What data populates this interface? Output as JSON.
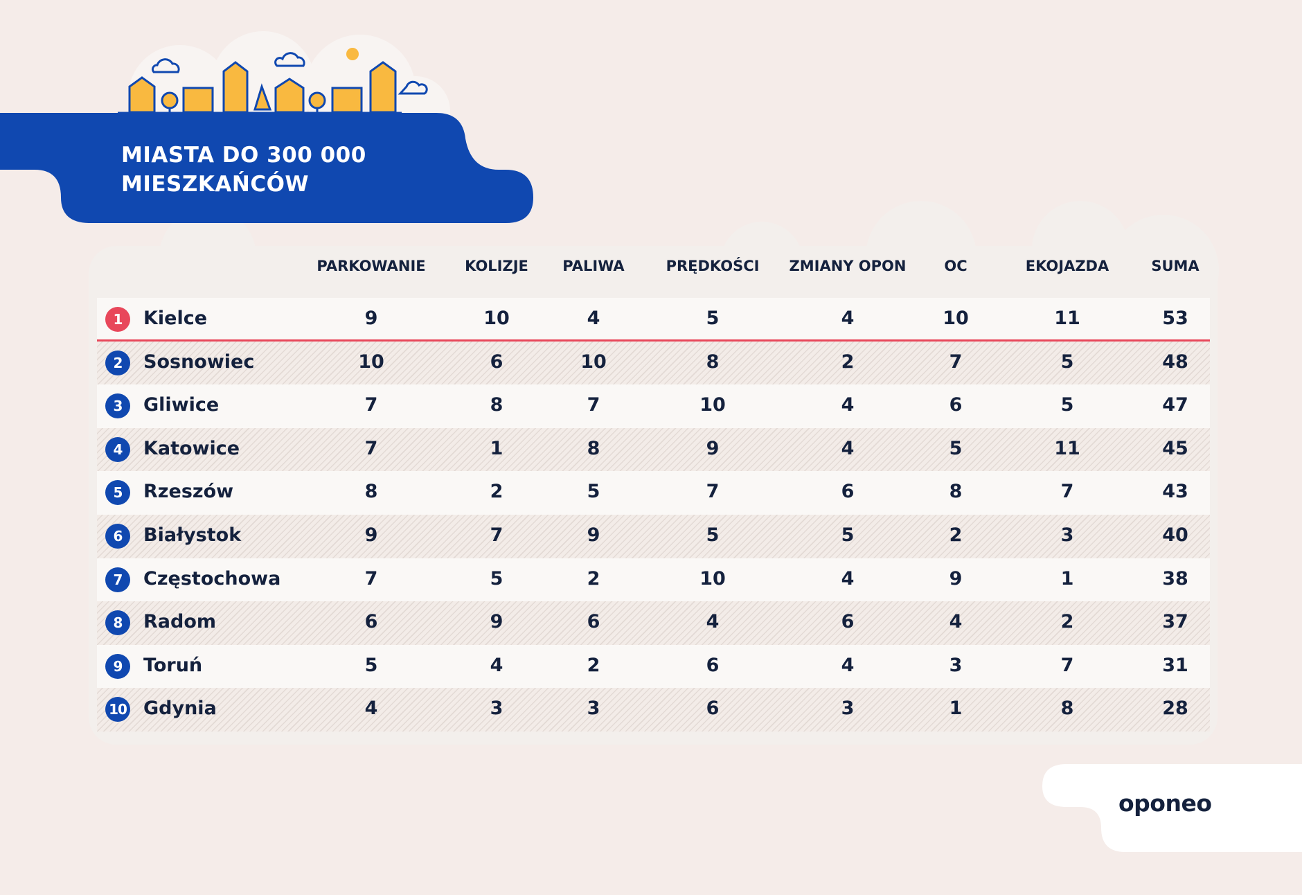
{
  "title_lines": [
    "MIASTA DO 300 000",
    "MIESZKAŃCÓW"
  ],
  "columns": [
    "PARKOWANIE",
    "KOLIZJE",
    "PALIWA",
    "PRĘDKOŚCI",
    "ZMIANY OPON",
    "OC",
    "EKOJAZDA",
    "SUMA"
  ],
  "rows": [
    {
      "rank": "1",
      "city": "Kielce",
      "values": [
        "9",
        "10",
        "4",
        "5",
        "4",
        "10",
        "11",
        "53"
      ]
    },
    {
      "rank": "2",
      "city": "Sosnowiec",
      "values": [
        "10",
        "6",
        "10",
        "8",
        "2",
        "7",
        "5",
        "48"
      ]
    },
    {
      "rank": "3",
      "city": "Gliwice",
      "values": [
        "7",
        "8",
        "7",
        "10",
        "4",
        "6",
        "5",
        "47"
      ]
    },
    {
      "rank": "4",
      "city": "Katowice",
      "values": [
        "7",
        "1",
        "8",
        "9",
        "4",
        "5",
        "11",
        "45"
      ]
    },
    {
      "rank": "5",
      "city": "Rzeszów",
      "values": [
        "8",
        "2",
        "5",
        "7",
        "6",
        "8",
        "7",
        "43"
      ]
    },
    {
      "rank": "6",
      "city": "Białystok",
      "values": [
        "9",
        "7",
        "9",
        "5",
        "5",
        "2",
        "3",
        "40"
      ]
    },
    {
      "rank": "7",
      "city": "Częstochowa",
      "values": [
        "7",
        "5",
        "2",
        "10",
        "4",
        "9",
        "1",
        "38"
      ]
    },
    {
      "rank": "8",
      "city": "Radom",
      "values": [
        "6",
        "9",
        "6",
        "4",
        "6",
        "4",
        "2",
        "37"
      ]
    },
    {
      "rank": "9",
      "city": "Toruń",
      "values": [
        "5",
        "4",
        "2",
        "6",
        "4",
        "3",
        "7",
        "31"
      ]
    },
    {
      "rank": "10",
      "city": "Gdynia",
      "values": [
        "4",
        "3",
        "3",
        "6",
        "3",
        "1",
        "8",
        "28"
      ]
    }
  ],
  "brand": "oponeo",
  "colors": {
    "background": "#f5ece9",
    "banner": "#1048b0",
    "leader": "#e8475a",
    "text": "#14213d",
    "building": "#f9b940"
  }
}
